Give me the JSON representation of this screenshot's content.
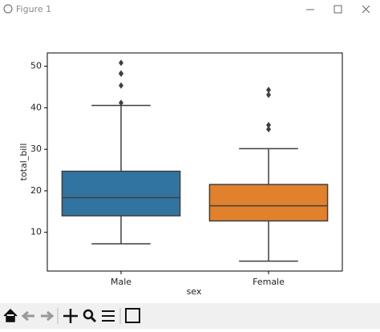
{
  "window": {
    "title": "Figure 1"
  },
  "chart_data": {
    "type": "box",
    "xlabel": "sex",
    "ylabel": "total_bill",
    "categories": [
      "Male",
      "Female"
    ],
    "boxes": [
      {
        "color": "#3274a1",
        "whislo": 7.25,
        "q1": 13.99,
        "med": 18.35,
        "q3": 24.71,
        "whishi": 40.55,
        "fliers": [
          41.19,
          45.35,
          48.17,
          48.27,
          50.81
        ]
      },
      {
        "color": "#e1812c",
        "whislo": 3.07,
        "q1": 12.75,
        "med": 16.4,
        "q3": 21.52,
        "whishi": 30.14,
        "fliers": [
          34.83,
          35.83,
          43.11,
          44.3
        ]
      }
    ],
    "ylim": [
      0.68,
      53.2
    ],
    "yticks": [
      10,
      20,
      30,
      40,
      50
    ]
  }
}
